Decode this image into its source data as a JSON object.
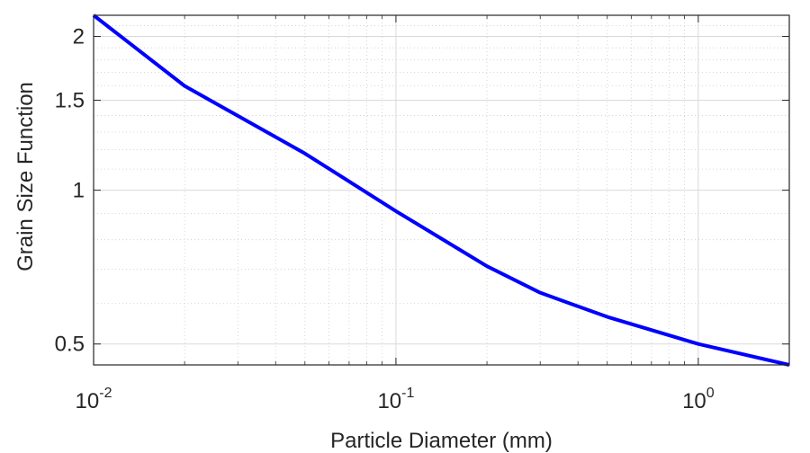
{
  "chart_data": {
    "type": "line",
    "title": "",
    "xlabel": "Particle Diameter (mm)",
    "ylabel": "Grain Size Function",
    "x_scale": "log",
    "y_scale": "log",
    "xlim": [
      0.01,
      2
    ],
    "ylim": [
      0.455,
      2.2
    ],
    "grid": true,
    "minor_grid": true,
    "legend": "none",
    "x_ticks": [
      {
        "value": 0.01,
        "base": "10",
        "exp": "-2"
      },
      {
        "value": 0.1,
        "base": "10",
        "exp": "-1"
      },
      {
        "value": 1,
        "base": "10",
        "exp": "0"
      }
    ],
    "y_ticks": [
      {
        "value": 0.5,
        "label": "0.5"
      },
      {
        "value": 1,
        "label": "1"
      },
      {
        "value": 1.5,
        "label": "1.5"
      },
      {
        "value": 2,
        "label": "2"
      }
    ],
    "series": [
      {
        "color": "#0000ff",
        "x": [
          0.01,
          0.02,
          0.05,
          0.1,
          0.2,
          0.3,
          0.5,
          1,
          2
        ],
        "y": [
          2.2,
          1.6,
          1.18,
          0.91,
          0.71,
          0.63,
          0.565,
          0.5,
          0.455
        ]
      }
    ]
  }
}
